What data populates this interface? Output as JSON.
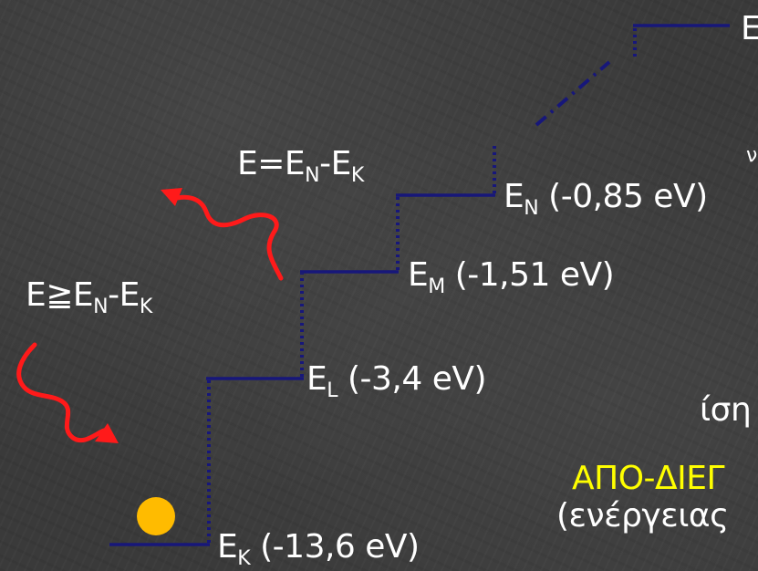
{
  "colors": {
    "level_line": "#17177a",
    "photon": "#ff1a1a",
    "electron": "#ffbb00",
    "text": "#ffffff",
    "highlight_text": "#ffff00"
  },
  "levels": {
    "K": {
      "symbol": "E",
      "sub": "K",
      "value": "(-13,6 eV)"
    },
    "L": {
      "symbol": "E",
      "sub": "L",
      "value": "(-3,4 eV)"
    },
    "M": {
      "symbol": "E",
      "sub": "M",
      "value": "(-1,51 eV)"
    },
    "N": {
      "symbol": "E",
      "sub": "N",
      "value": "(-0,85 eV)"
    },
    "top": {
      "symbol": "E"
    }
  },
  "emitted_photon": {
    "e": "E=E",
    "sub1": "N",
    "minus": "-E",
    "sub2": "K"
  },
  "absorbed_photon": {
    "e": "E≧E",
    "sub1": "N",
    "minus": "-E",
    "sub2": "K"
  },
  "right_text": {
    "partial_1": "ίση",
    "partial_2": "ΑΠΟ-ΔΙΕΓ",
    "partial_3": "(ενέργειας",
    "partial_4": "ν"
  }
}
